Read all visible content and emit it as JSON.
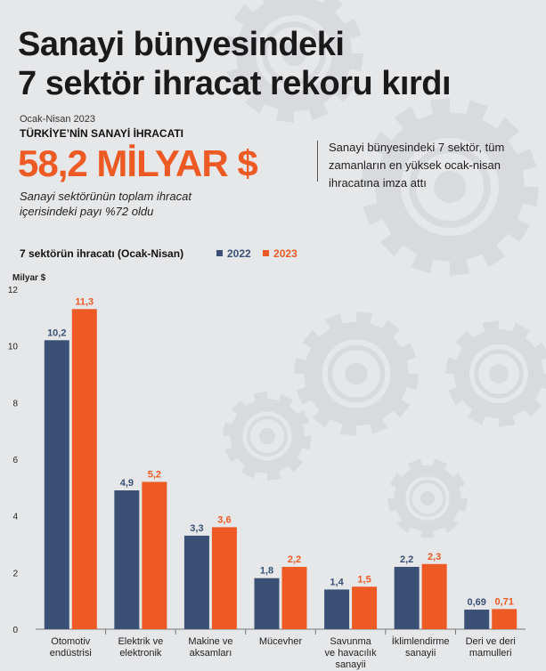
{
  "title": [
    "Sanayi bünyesindeki",
    "7 sektör ihracat rekoru kırdı"
  ],
  "period": "Ocak-Nisan 2023",
  "subheading": "TÜRKİYE’NİN SANAYİ İHRACATI",
  "total": "58,2 MİLYAR $",
  "share_note": "Sanayi sektörünün toplam ihracat içerisindeki payı %72 oldu",
  "side_note": "Sanayi bünyesindeki 7 sektör, tüm zamanların en yüksek ocak-nisan ihracatına imza attı",
  "colors": {
    "y2022": "#3a5175",
    "y2023": "#ee5a24",
    "accent": "#ee5a24"
  },
  "chart_data": {
    "type": "bar",
    "title": "7 sektörün ihracatı (Ocak-Nisan)",
    "ylabel": "Milyar $",
    "ylim": [
      0,
      12
    ],
    "yticks": [
      0,
      2,
      4,
      6,
      8,
      10,
      12
    ],
    "grid": false,
    "legend_position": "top",
    "categories": [
      [
        "Otomotiv",
        "endüstrisi"
      ],
      [
        "Elektrik ve",
        "elektronik"
      ],
      [
        "Makine ve",
        "aksamları"
      ],
      [
        "Mücevher"
      ],
      [
        "Savunma",
        "ve havacılık",
        "sanayii"
      ],
      [
        "İklimlendirme",
        "sanayii"
      ],
      [
        "Deri ve deri",
        "mamulleri"
      ]
    ],
    "series": [
      {
        "name": "2022",
        "color": "#3a5175",
        "values": [
          10.2,
          4.9,
          3.3,
          1.8,
          1.4,
          2.2,
          0.69
        ],
        "labels": [
          "10,2",
          "4,9",
          "3,3",
          "1,8",
          "1,4",
          "2,2",
          "0,69"
        ]
      },
      {
        "name": "2023",
        "color": "#ee5a24",
        "values": [
          11.3,
          5.2,
          3.6,
          2.2,
          1.5,
          2.3,
          0.71
        ],
        "labels": [
          "11,3",
          "5,2",
          "3,6",
          "2,2",
          "1,5",
          "2,3",
          "0,71"
        ]
      }
    ]
  }
}
